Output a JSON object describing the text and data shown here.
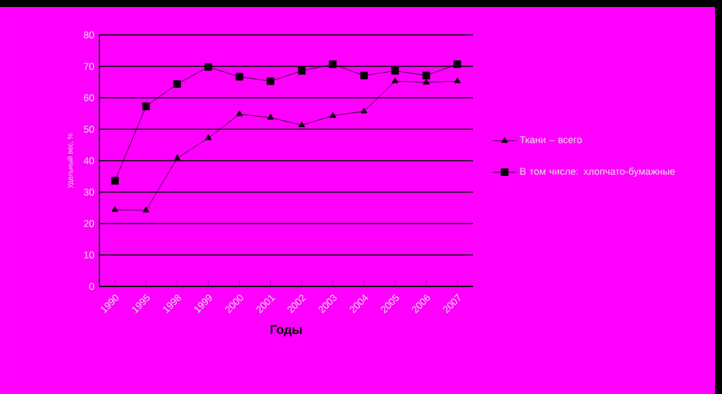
{
  "chart_data": {
    "type": "line",
    "xlabel": "Годы",
    "ylabel": "Удельный вес, %",
    "categories": [
      "1990",
      "1995",
      "1998",
      "1999",
      "2000",
      "2001",
      "2002",
      "2003",
      "2004",
      "2005",
      "2006",
      "2007"
    ],
    "series": [
      {
        "name": "Ткани – всего",
        "color": "#000000",
        "marker": "triangle",
        "values": [
          24.4,
          24.2,
          40.8,
          47.2,
          54.8,
          53.7,
          51.3,
          54.3,
          55.7,
          65.3,
          64.9,
          65.3
        ]
      },
      {
        "name": "В том числе: хлопчато-бумажные",
        "color": "#000000",
        "marker": "square",
        "values": [
          33.6,
          57.3,
          64.4,
          69.8,
          66.7,
          65.3,
          68.6,
          70.7,
          67.1,
          68.6,
          67.1,
          70.7
        ]
      }
    ],
    "ylim": [
      0,
      80
    ],
    "yticks": [
      0,
      10,
      20,
      30,
      40,
      50,
      60,
      70,
      80
    ],
    "grid": "y",
    "legend": "right",
    "line_style": "solid"
  }
}
